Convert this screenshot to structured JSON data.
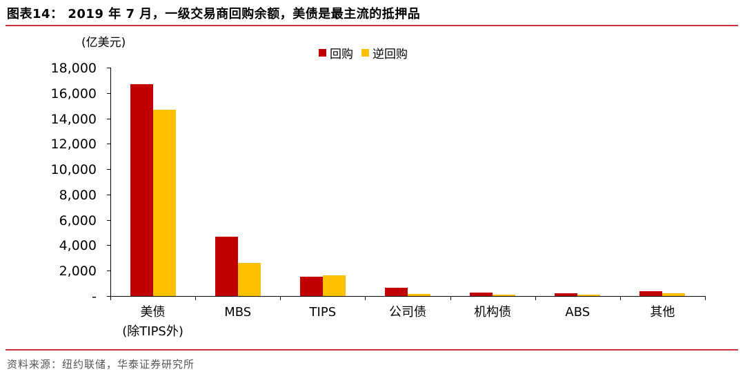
{
  "header": {
    "title": "图表14： 2019 年 7 月，一级交易商回购余额，美债是最主流的抵押品"
  },
  "footer": {
    "source": "资料来源：纽约联储，华泰证券研究所"
  },
  "colors": {
    "repo": "#c00000",
    "reverse_repo": "#ffc000",
    "rule": "#c8323c",
    "axis": "#000000"
  },
  "chart_data": {
    "type": "bar",
    "title": "2019 年 7 月，一级交易商回购余额，美债是最主流的抵押品",
    "ylabel": "(亿美元)",
    "xlabel": "",
    "unit_label": "(亿美元)",
    "categories": [
      "美债\n(除TIPS外)",
      "MBS",
      "TIPS",
      "公司债",
      "机构债",
      "ABS",
      "其他"
    ],
    "category_lines": [
      [
        "美债",
        "(除TIPS外)"
      ],
      [
        "MBS"
      ],
      [
        "TIPS"
      ],
      [
        "公司债"
      ],
      [
        "机构债"
      ],
      [
        "ABS"
      ],
      [
        "其他"
      ]
    ],
    "series": [
      {
        "name": "回购",
        "color": "#c00000",
        "values": [
          16700,
          4680,
          1520,
          650,
          270,
          200,
          380
        ]
      },
      {
        "name": "逆回购",
        "color": "#ffc000",
        "values": [
          14680,
          2610,
          1630,
          160,
          100,
          90,
          220
        ]
      }
    ],
    "ylim": [
      0,
      18000
    ],
    "yticks": [
      0,
      2000,
      4000,
      6000,
      8000,
      10000,
      12000,
      14000,
      16000,
      18000
    ],
    "ytick_labels": [
      "-",
      "2,000",
      "4,000",
      "6,000",
      "8,000",
      "10,000",
      "12,000",
      "14,000",
      "16,000",
      "18,000"
    ],
    "grid": false,
    "legend_position": "top-center"
  }
}
